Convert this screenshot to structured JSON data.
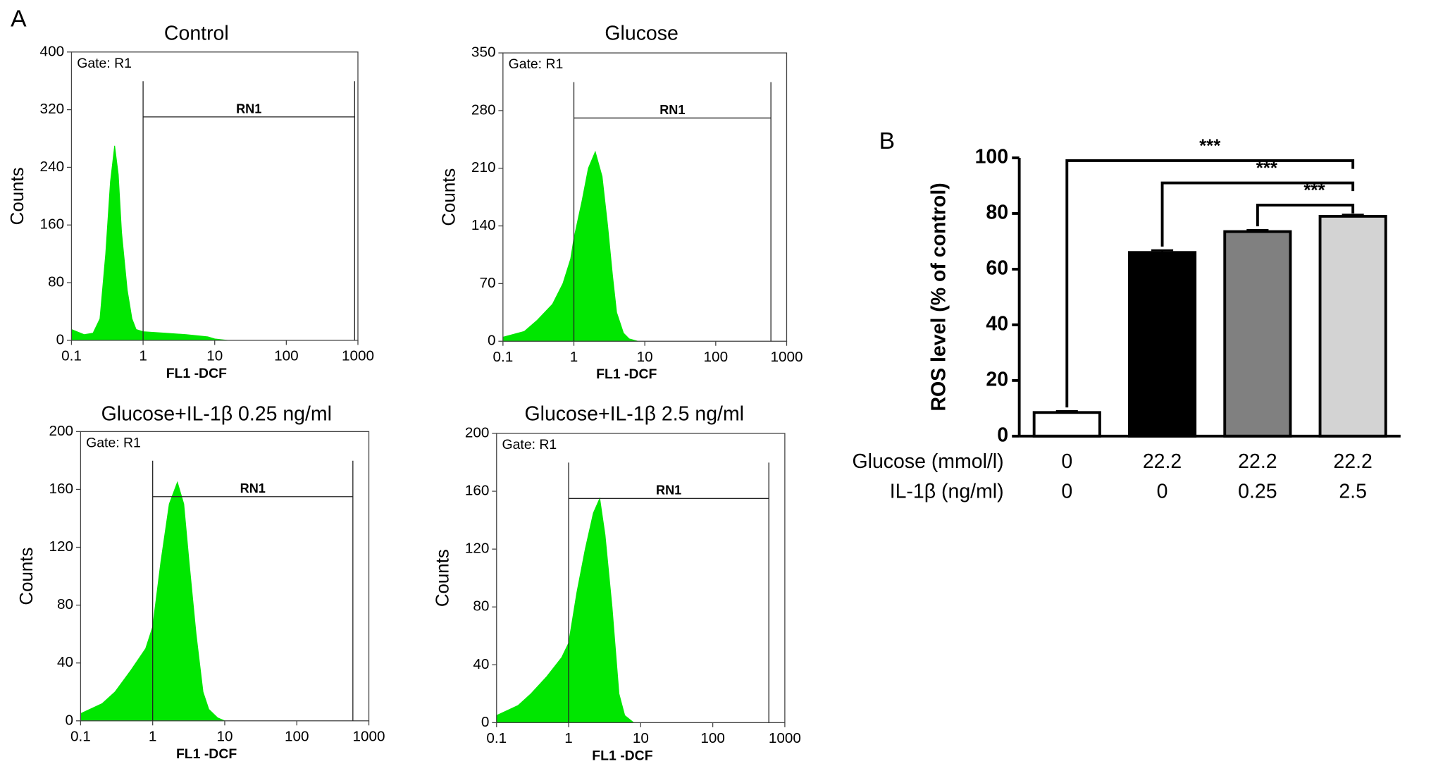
{
  "chart_data": [
    {
      "type": "area",
      "panel_label": "A",
      "title": "Control",
      "annotation": "Gate: R1",
      "xlabel": "FL1  -DCF",
      "ylabel": "Counts",
      "x": [
        0.1,
        0.15,
        0.2,
        0.25,
        0.3,
        0.35,
        0.4,
        0.45,
        0.5,
        0.6,
        0.7,
        0.8,
        1,
        2,
        4,
        8,
        10,
        15
      ],
      "values": [
        15,
        8,
        10,
        30,
        120,
        220,
        270,
        230,
        150,
        70,
        30,
        15,
        12,
        10,
        8,
        5,
        2,
        0
      ],
      "color": "#00e600",
      "xlog": true,
      "xlim": [
        0.1,
        1000
      ],
      "xticks": [
        0.1,
        1,
        10,
        100,
        1000
      ],
      "ylim": [
        0,
        400
      ],
      "yticks": [
        0,
        80,
        160,
        240,
        320,
        400
      ],
      "gate": {
        "label": "RN1",
        "x": [
          1,
          900
        ],
        "y": 310
      }
    },
    {
      "type": "area",
      "title": "Glucose",
      "annotation": "Gate: R1",
      "xlabel": "FL1  -DCF",
      "ylabel": "Counts",
      "x": [
        0.1,
        0.2,
        0.3,
        0.5,
        0.7,
        0.9,
        1,
        1.3,
        1.6,
        2,
        2.5,
        3,
        3.5,
        4,
        5,
        6,
        8
      ],
      "values": [
        5,
        12,
        25,
        45,
        70,
        100,
        125,
        170,
        210,
        230,
        200,
        140,
        80,
        35,
        10,
        3,
        0
      ],
      "color": "#00e600",
      "xlog": true,
      "xlim": [
        0.1,
        1000
      ],
      "xticks": [
        0.1,
        1,
        10,
        100,
        1000
      ],
      "ylim": [
        0,
        350
      ],
      "yticks": [
        0,
        70,
        140,
        210,
        280,
        350
      ],
      "gate": {
        "label": "RN1",
        "x": [
          1,
          600
        ],
        "y": 271
      }
    },
    {
      "type": "area",
      "title": "Glucose+IL-1β 0.25 ng/ml",
      "annotation": "Gate: R1",
      "xlabel": "FL1  -DCF",
      "ylabel": "Counts",
      "x": [
        0.1,
        0.2,
        0.3,
        0.5,
        0.8,
        1,
        1.3,
        1.7,
        2.2,
        2.7,
        3.2,
        4,
        5,
        6,
        8,
        10
      ],
      "values": [
        5,
        12,
        20,
        35,
        50,
        65,
        110,
        150,
        165,
        150,
        110,
        60,
        20,
        8,
        2,
        0
      ],
      "color": "#00e600",
      "xlog": true,
      "xlim": [
        0.1,
        1000
      ],
      "xticks": [
        0.1,
        1,
        10,
        100,
        1000
      ],
      "ylim": [
        0,
        200
      ],
      "yticks": [
        0,
        40,
        80,
        120,
        160,
        200
      ],
      "gate": {
        "label": "RN1",
        "x": [
          1,
          600
        ],
        "y": 155
      }
    },
    {
      "type": "area",
      "title": "Glucose+IL-1β 2.5 ng/ml",
      "annotation": "Gate: R1",
      "xlabel": "FL1  -DCF",
      "ylabel": "Counts",
      "x": [
        0.1,
        0.2,
        0.3,
        0.5,
        0.8,
        1,
        1.3,
        1.7,
        2.2,
        2.7,
        3.2,
        4,
        5,
        6,
        8
      ],
      "values": [
        5,
        12,
        20,
        32,
        45,
        55,
        90,
        120,
        145,
        155,
        130,
        80,
        20,
        5,
        0
      ],
      "color": "#00e600",
      "xlog": true,
      "xlim": [
        0.1,
        1000
      ],
      "xticks": [
        0.1,
        1,
        10,
        100,
        1000
      ],
      "ylim": [
        0,
        200
      ],
      "yticks": [
        0,
        40,
        80,
        120,
        160,
        200
      ],
      "gate": {
        "label": "RN1",
        "x": [
          1,
          600
        ],
        "y": 155
      }
    },
    {
      "type": "bar",
      "panel_label": "B",
      "ylabel": "ROS level (% of control)",
      "values": [
        8.5,
        66,
        73.5,
        79
      ],
      "errors": [
        0.5,
        0.8,
        0.6,
        0.6
      ],
      "colors": [
        "#ffffff",
        "#000000",
        "#808080",
        "#d3d3d3"
      ],
      "ylim": [
        0,
        100
      ],
      "yticks": [
        0,
        20,
        40,
        60,
        80,
        100
      ],
      "category_rows": [
        {
          "label": "Glucose (mmol/l)",
          "values": [
            0,
            22.2,
            22.2,
            22.2
          ]
        },
        {
          "label": "IL-1β (ng/ml)",
          "values": [
            0,
            0,
            0.25,
            2.5
          ]
        }
      ],
      "significance": [
        {
          "from": 0,
          "to": 3,
          "label": "***",
          "y": 99
        },
        {
          "from": 1,
          "to": 3,
          "label": "***",
          "y": 91
        },
        {
          "from": 2,
          "to": 3,
          "label": "***",
          "y": 83
        }
      ]
    }
  ]
}
